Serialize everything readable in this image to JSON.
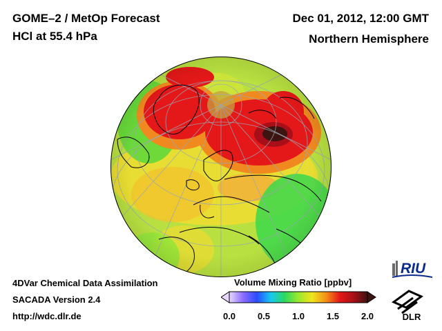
{
  "header": {
    "title_line1": "GOME–2 / MetOp Forecast",
    "title_line2": "HCl at 55.4 hPa",
    "date": "Dec 01, 2012, 12:00 GMT",
    "region": "Northern Hemisphere"
  },
  "footer": {
    "line1": "4DVar Chemical Data Assimilation",
    "line2": "SACADA Version 2.4",
    "line3": "http://wdc.dlr.de"
  },
  "colorbar": {
    "title": "Volume Mixing Ratio [ppbv]",
    "ticks": [
      "0.0",
      "0.5",
      "1.0",
      "1.5",
      "2.0"
    ],
    "range": [
      0.0,
      2.0
    ],
    "colors": [
      "#e8d8ff",
      "#8c6cff",
      "#2a4cff",
      "#18c8f0",
      "#2cd860",
      "#9ae82c",
      "#f0e41c",
      "#f49018",
      "#e41818",
      "#a80f18",
      "#3c1410"
    ]
  },
  "logos": {
    "riu": "RIU",
    "dlr": "DLR"
  },
  "map": {
    "projection": "orthographic",
    "field": "HCl",
    "background_color": "#b8e040",
    "graticule_color": "#9aa6b2",
    "coast_color": "#000000"
  }
}
